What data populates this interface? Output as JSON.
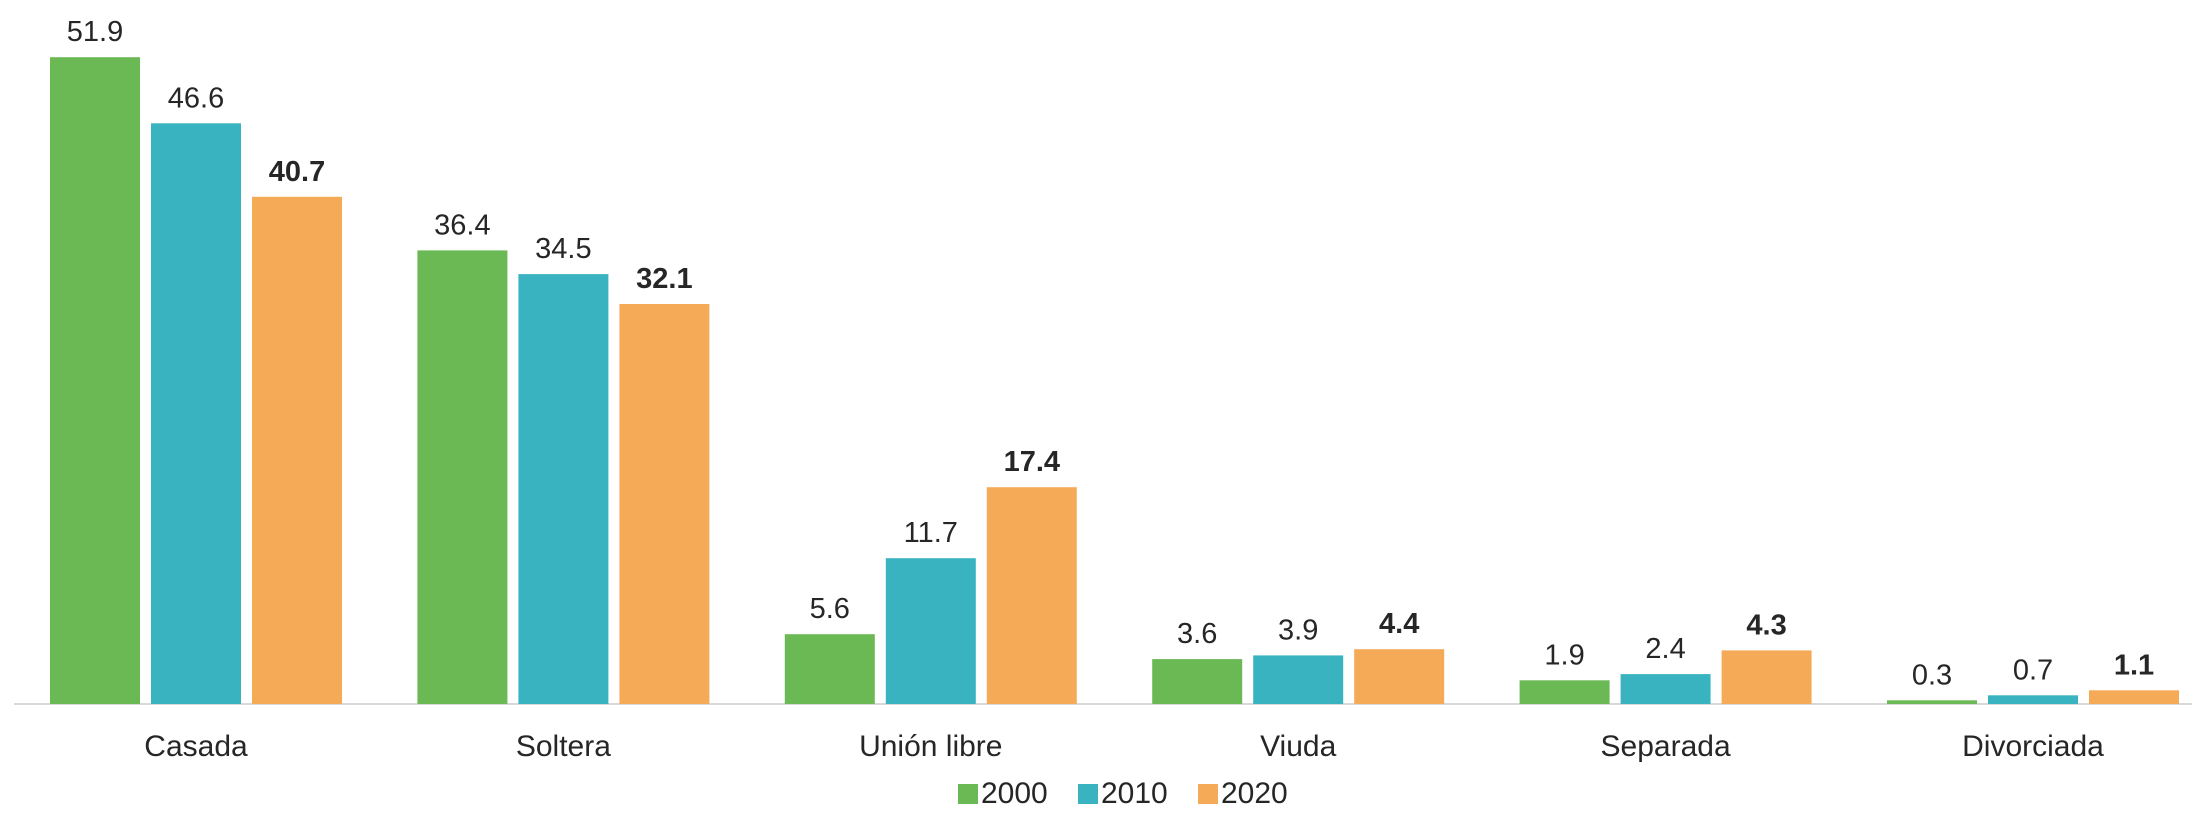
{
  "chart_data": {
    "type": "bar",
    "title": "",
    "xlabel": "",
    "ylabel": "",
    "categories": [
      "Casada",
      "Soltera",
      "Unión libre",
      "Viuda",
      "Separada",
      "Divorciada"
    ],
    "series": [
      {
        "name": "2000",
        "color": "#6ab955",
        "values": [
          51.9,
          36.4,
          5.6,
          3.6,
          1.9,
          0.3
        ],
        "label_bold": false
      },
      {
        "name": "2010",
        "color": "#3ab3c1",
        "values": [
          46.6,
          34.5,
          11.7,
          3.9,
          2.4,
          0.7
        ],
        "label_bold": false
      },
      {
        "name": "2020",
        "color": "#f5aa58",
        "values": [
          40.7,
          32.1,
          17.4,
          4.4,
          4.3,
          1.1
        ],
        "label_bold": true
      }
    ],
    "ylim": [
      0,
      52
    ],
    "grid": false,
    "legend_position": "bottom-center",
    "baseline_color": "#d9d9d9"
  }
}
